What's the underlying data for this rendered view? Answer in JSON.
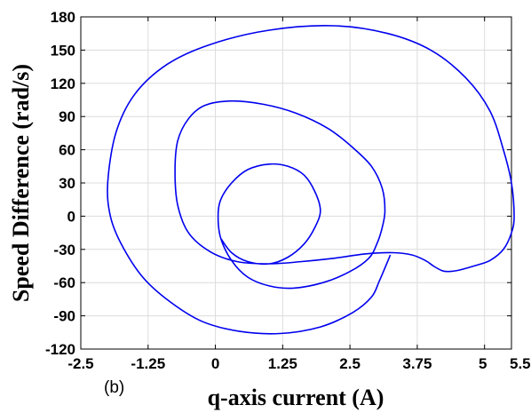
{
  "chart_data": {
    "type": "line",
    "title": "",
    "xlabel": "q-axis current (A)",
    "ylabel": "Speed Difference (rad/s)",
    "panel_label": "(b)",
    "xlim": [
      -2.5,
      5.5
    ],
    "ylim": [
      -120,
      180
    ],
    "xticks": [
      -2.5,
      -1.25,
      0,
      1.25,
      2.5,
      3.75,
      5,
      5.5
    ],
    "xtick_labels": [
      "-2.5",
      "-1.25",
      "0",
      "1.25",
      "2.5",
      "3.75",
      "5",
      "5.5"
    ],
    "yticks": [
      -120,
      -90,
      -60,
      -30,
      0,
      30,
      60,
      90,
      120,
      150,
      180
    ],
    "ytick_labels": [
      "-120",
      "-90",
      "-60",
      "-30",
      "0",
      "30",
      "60",
      "90",
      "120",
      "150",
      "180"
    ],
    "grid": true,
    "line_color": "#0000ee",
    "series": [
      {
        "x": [
          0.1,
          0.3,
          0.6,
          1.0,
          1.35,
          1.65,
          1.85,
          1.95,
          1.85,
          1.65,
          1.35,
          1.0,
          0.6,
          0.3,
          0.1,
          0.05,
          0.1,
          0.3,
          0.6,
          1.0,
          1.45,
          2.0,
          2.5,
          2.85,
          3.0,
          3.1,
          3.15,
          3.1,
          2.9,
          2.55,
          2.1,
          1.5,
          0.9,
          0.3,
          -0.2,
          -0.5,
          -0.7,
          -0.75,
          -0.7,
          -0.5,
          -0.1,
          0.4,
          1.0,
          1.6,
          2.2,
          2.8,
          3.3,
          3.65,
          3.9,
          4.05,
          4.2,
          4.3,
          4.5,
          4.8,
          5.1,
          5.35,
          5.5,
          5.55,
          5.5,
          5.35,
          5.1,
          4.65,
          4.0,
          3.2,
          2.2,
          1.0,
          -0.1,
          -0.9,
          -1.5,
          -1.85,
          -2.0,
          -1.95,
          -1.75,
          -1.35,
          -0.85,
          -0.25,
          0.45,
          1.2,
          1.95,
          2.55,
          2.9,
          3.05,
          3.25
        ],
        "y": [
          -20,
          -33,
          -41,
          -43,
          -37,
          -25,
          -10,
          5,
          22,
          37,
          45,
          47,
          42,
          30,
          15,
          0,
          -20,
          -40,
          -55,
          -63,
          -65,
          -60,
          -50,
          -38,
          -25,
          -10,
          5,
          25,
          45,
          62,
          79,
          93,
          101,
          104,
          100,
          88,
          68,
          40,
          10,
          -15,
          -32,
          -41,
          -43,
          -41,
          -38,
          -34,
          -33,
          -35,
          -40,
          -45,
          -49,
          -50,
          -49,
          -45,
          -40,
          -30,
          -15,
          0,
          30,
          60,
          95,
          125,
          150,
          165,
          172,
          168,
          155,
          137,
          110,
          75,
          30,
          0,
          -25,
          -55,
          -77,
          -95,
          -104,
          -106,
          -100,
          -87,
          -73,
          -58,
          -35
        ]
      }
    ]
  }
}
